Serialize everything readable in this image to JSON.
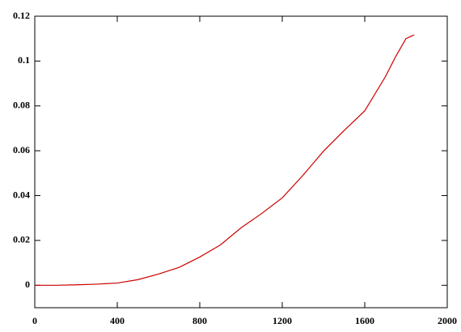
{
  "chart_data": {
    "type": "line",
    "x": [
      0,
      100,
      200,
      300,
      400,
      500,
      600,
      700,
      800,
      900,
      1000,
      1100,
      1200,
      1300,
      1400,
      1500,
      1600,
      1700,
      1750,
      1800,
      1840
    ],
    "series": [
      {
        "color": "#cc0000",
        "values": [
          0,
          0,
          0.0002,
          0.0005,
          0.001,
          0.0025,
          0.005,
          0.008,
          0.0126,
          0.018,
          0.0256,
          0.032,
          0.039,
          0.049,
          0.0598,
          0.069,
          0.0778,
          0.093,
          0.102,
          0.11,
          0.1117
        ]
      }
    ],
    "xlim": [
      0,
      2000
    ],
    "xticks": [
      0,
      400,
      800,
      1200,
      1600,
      2000
    ],
    "ylim": [
      -0.01,
      0.12
    ],
    "yticks": [
      0,
      0.02,
      0.04,
      0.06,
      0.08,
      0.1,
      0.12
    ],
    "grid": false
  }
}
